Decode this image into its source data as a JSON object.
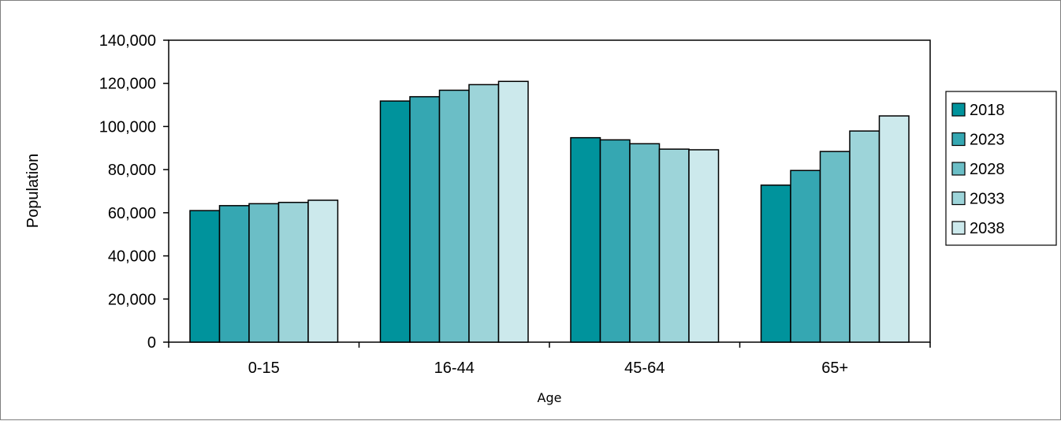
{
  "chart_data": {
    "type": "bar",
    "title": "",
    "xlabel": "Age",
    "ylabel": "Population",
    "categories": [
      "0-15",
      "16-44",
      "45-64",
      "65+"
    ],
    "series": [
      {
        "name": "2018",
        "color": "#00939c",
        "values": [
          61000,
          111800,
          94800,
          72800
        ]
      },
      {
        "name": "2023",
        "color": "#35a7b2",
        "values": [
          63300,
          113800,
          93800,
          79600
        ]
      },
      {
        "name": "2028",
        "color": "#6bbec6",
        "values": [
          64200,
          116800,
          92000,
          88400
        ]
      },
      {
        "name": "2033",
        "color": "#9dd4d9",
        "values": [
          64800,
          119400,
          89500,
          97900
        ]
      },
      {
        "name": "2038",
        "color": "#cce9ec",
        "values": [
          65800,
          120900,
          89200,
          104900
        ]
      }
    ],
    "ylim": [
      0,
      140000
    ],
    "yticks": [
      0,
      20000,
      40000,
      60000,
      80000,
      100000,
      120000,
      140000
    ],
    "ytick_labels": [
      "0",
      "20,000",
      "40,000",
      "60,000",
      "80,000",
      "100,000",
      "120,000",
      "140,000"
    ],
    "grid": false,
    "legend_position": "right"
  }
}
